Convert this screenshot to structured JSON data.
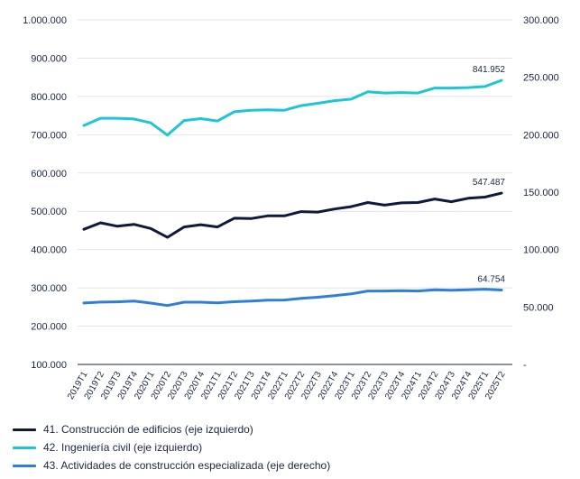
{
  "chart_data": {
    "type": "line",
    "categories": [
      "2019T1",
      "2019T2",
      "2019T3",
      "2019T4",
      "2020T1",
      "2020T2",
      "2020T3",
      "2020T4",
      "2021T1",
      "2021T2",
      "2021T3",
      "2021T4",
      "2022T1",
      "2022T2",
      "2022T3",
      "2022T4",
      "2023T1",
      "2023T2",
      "2023T3",
      "2023T4",
      "2024T1",
      "2024T2",
      "2024T3",
      "2024T4",
      "2025T1",
      "2025T2"
    ],
    "left_axis": {
      "ylim": [
        100000,
        1000000
      ],
      "ticks": [
        "100.000",
        "200.000",
        "300.000",
        "400.000",
        "500.000",
        "600.000",
        "700.000",
        "800.000",
        "900.000",
        "1.000.000"
      ]
    },
    "right_axis": {
      "ylim": [
        0,
        300000
      ],
      "ticks": [
        "-",
        "50.000",
        "100.000",
        "150.000",
        "200.000",
        "250.000",
        "300.000"
      ]
    },
    "grid": true,
    "legend_position": "bottom-left",
    "series": [
      {
        "name": "41. Construcción de edificios (eje izquierdo)",
        "axis": "left",
        "color": "#0f1a3a",
        "values": [
          453000,
          470000,
          461000,
          466000,
          455000,
          432000,
          459000,
          465000,
          459000,
          482000,
          481000,
          488000,
          488000,
          499000,
          498000,
          506000,
          512000,
          523000,
          516000,
          522000,
          523000,
          532000,
          525000,
          534000,
          537000,
          547487
        ],
        "end_label": "547.487"
      },
      {
        "name": "42. Ingeniería civil (eje izquierdo)",
        "axis": "left",
        "color": "#1ec5d4",
        "values": [
          724000,
          743000,
          743000,
          741000,
          731000,
          699000,
          737000,
          742000,
          736000,
          760000,
          764000,
          765000,
          764000,
          776000,
          782000,
          789000,
          793000,
          812000,
          809000,
          810000,
          809000,
          822000,
          822000,
          823000,
          826000,
          841952
        ],
        "end_label": "841.952"
      },
      {
        "name": "43. Actividades de construcción especializada (eje derecho)",
        "axis": "right",
        "color": "#2f7fd8",
        "values": [
          53500,
          54300,
          54500,
          55100,
          53400,
          51300,
          54200,
          54200,
          53600,
          54600,
          55100,
          55900,
          56100,
          57600,
          58500,
          59900,
          61400,
          63900,
          63900,
          64200,
          63900,
          65000,
          64600,
          65000,
          65500,
          64754
        ],
        "end_label": "64.754"
      }
    ]
  }
}
